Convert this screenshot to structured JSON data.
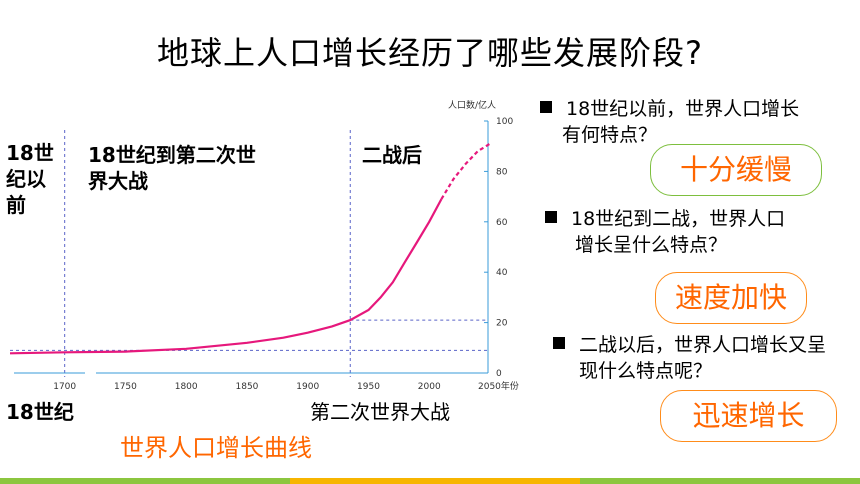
{
  "title": "地球上人口增长经历了哪些发展阶段?",
  "chart_data": {
    "type": "line",
    "ylabel": "人口数/亿人",
    "xlabel": "年份",
    "xlim": [
      1655,
      2050
    ],
    "ylim": [
      0,
      100
    ],
    "x_ticks": [
      "1700",
      "1750",
      "1800",
      "1850",
      "1900",
      "1950",
      "2000"
    ],
    "x_last_tick": "2050",
    "y_ticks": [
      "0",
      "20",
      "40",
      "60",
      "80",
      "100"
    ],
    "series": [
      {
        "style": "solid",
        "color": "#e6187c",
        "x": [
          1655,
          1700,
          1750,
          1800,
          1850,
          1880,
          1900,
          1920,
          1935,
          1950,
          1960,
          1970,
          1980,
          1990,
          2000,
          2010
        ],
        "y": [
          7.8,
          8.2,
          8.5,
          9.6,
          12,
          14,
          16,
          18.5,
          21,
          25,
          30,
          36,
          44,
          52,
          60,
          69
        ]
      },
      {
        "style": "dashed",
        "color": "#e6187c",
        "x": [
          2010,
          2020,
          2030,
          2040,
          2050
        ],
        "y": [
          69,
          77,
          83,
          88,
          91
        ]
      }
    ],
    "reference_lines": {
      "x": [
        1700,
        1935
      ],
      "y": [
        9,
        21
      ]
    }
  },
  "eras": {
    "before_18": "18世纪以前",
    "to_ww2": "18世纪到第二次世界大战",
    "after_ww2": "二战后"
  },
  "below_labels": {
    "c18": "18世纪",
    "ww2": "第二次世界大战"
  },
  "caption": "世界人口增长曲线",
  "questions": [
    {
      "text": "18世纪以前，世界人口增长有何特点？",
      "answer": "十分缓慢"
    },
    {
      "text": "18世纪到二战，世界人口增长呈什么特点？",
      "answer": "速度加快"
    },
    {
      "text": "二战以后，世界人口增长又呈现什么特点呢？",
      "answer": "迅速增长"
    }
  ],
  "colors": {
    "accent": "#ff6600",
    "curve": "#e6187c",
    "axis": "#3a9bd9",
    "green_border": "#7dbf3e",
    "orange_border": "#ff8c1a"
  }
}
